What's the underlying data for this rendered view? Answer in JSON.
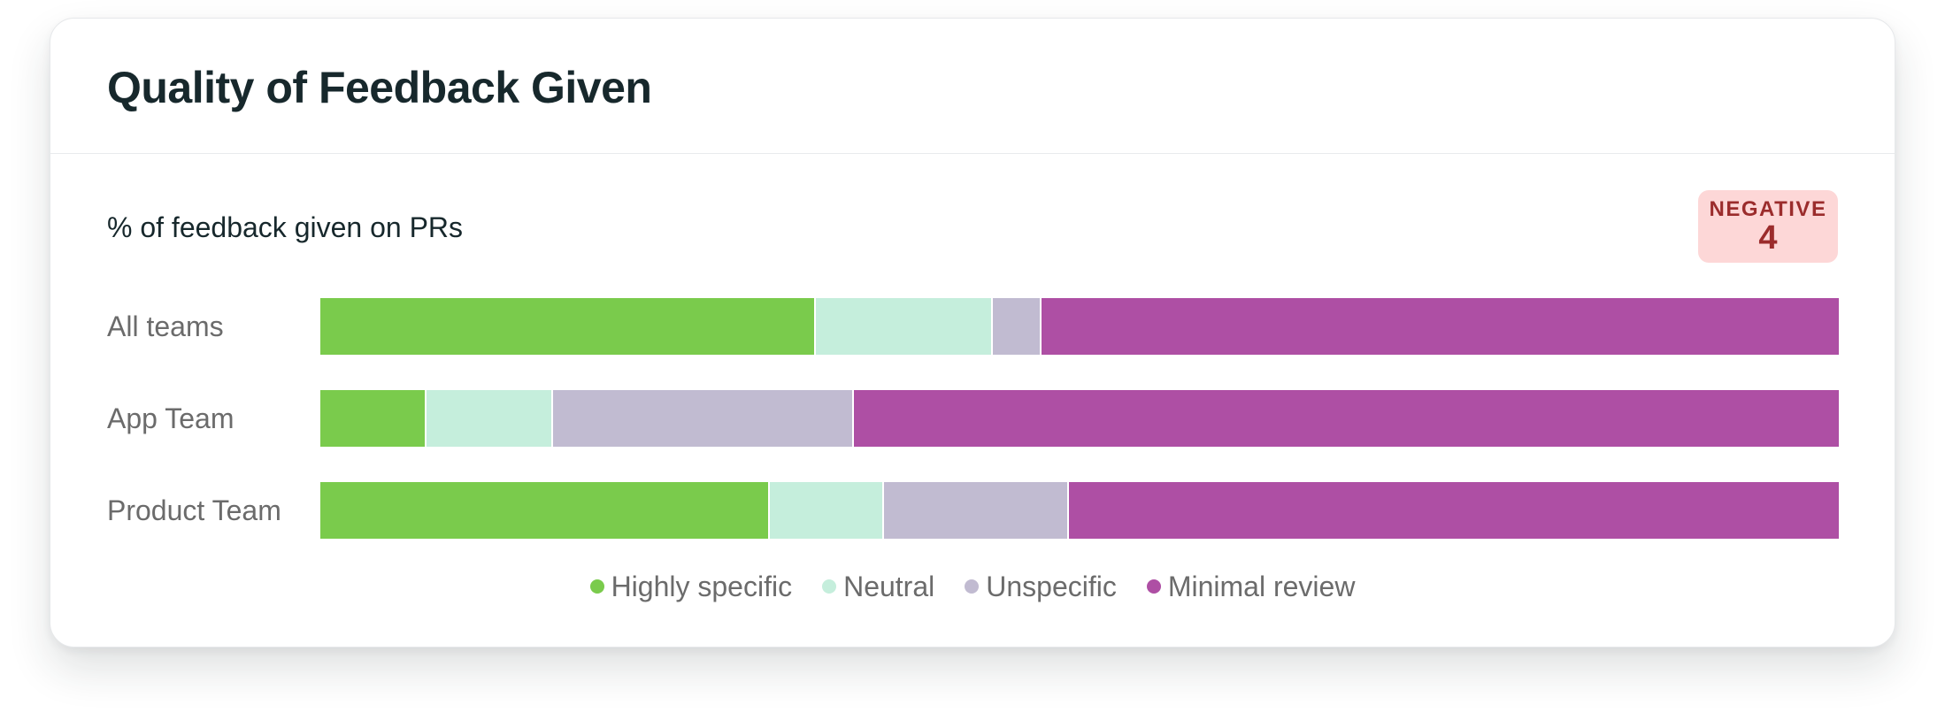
{
  "card": {
    "title": "Quality of Feedback Given",
    "subtitle": "% of feedback given on PRs"
  },
  "badge": {
    "label": "NEGATIVE",
    "value": "4",
    "bg_color": "#fdd7d7",
    "text_color": "#9b2c2c"
  },
  "chart_data": {
    "type": "bar",
    "orientation": "horizontal",
    "stacked": true,
    "percent": true,
    "title": "",
    "xlabel": "",
    "ylabel": "",
    "xlim": [
      0,
      100
    ],
    "grid": false,
    "legend_position": "bottom",
    "categories": [
      "All teams",
      "App Team",
      "Product Team"
    ],
    "series": [
      {
        "name": "Highly specific",
        "color": "#7acb4c",
        "values": [
          32.5,
          6.9,
          29.5
        ]
      },
      {
        "name": "Neutral",
        "color": "#c5eedc",
        "values": [
          11.7,
          8.3,
          7.5
        ]
      },
      {
        "name": "Unspecific",
        "color": "#c1bbd1",
        "values": [
          3.2,
          19.8,
          12.2
        ]
      },
      {
        "name": "Minimal review",
        "color": "#ae4fa4",
        "values": [
          52.6,
          65.0,
          50.8
        ]
      }
    ]
  }
}
